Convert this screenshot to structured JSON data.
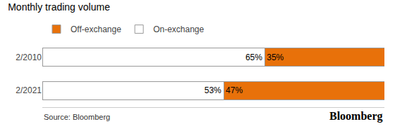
{
  "chart_data": {
    "type": "bar",
    "orientation": "horizontal",
    "stacked": true,
    "title": "Monthly trading volume",
    "categories": [
      "2/2010",
      "2/2021"
    ],
    "series": [
      {
        "name": "On-exchange",
        "color": "#ffffff",
        "values": [
          65,
          53
        ],
        "value_labels": [
          "65%",
          "53%"
        ]
      },
      {
        "name": "Off-exchange",
        "color": "#e8710a",
        "values": [
          35,
          47
        ],
        "value_labels": [
          "35%",
          "47%"
        ]
      }
    ],
    "xlim": [
      0,
      100
    ],
    "data_labels": true,
    "tick_labels": "y",
    "grid": false,
    "legend": "top left",
    "annotations": [
      "Source: Bloomberg",
      "Bloomberg"
    ]
  }
}
